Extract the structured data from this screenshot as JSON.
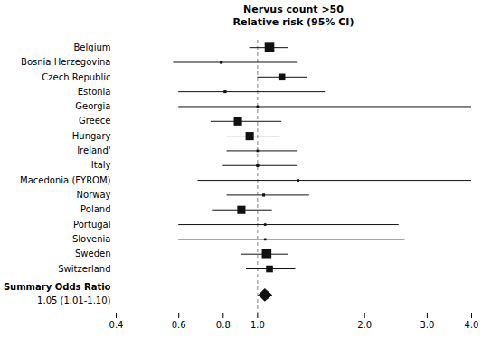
{
  "chart_data": {
    "type": "forest",
    "title": "Nervus count >50",
    "subtitle": "Relative risk (95% CI)",
    "log": "x",
    "grid": false,
    "color": "#111111",
    "categories": [
      "Belgium",
      "Bosnia Herzegovina",
      "Czech Republic",
      "Estonia",
      "Georgia",
      "Greece",
      "Hungary",
      "Ireland'",
      "Italy",
      "Macedonia (FYROM)",
      "Norway",
      "Poland",
      "Portugal",
      "Slovenia",
      "Sweden",
      "Switzerland"
    ],
    "values": [
      1.08,
      0.79,
      1.17,
      0.81,
      1.0,
      0.88,
      0.95,
      1.0,
      1.0,
      1.3,
      1.04,
      0.9,
      1.05,
      1.05,
      1.06,
      1.08
    ],
    "ci_lo": [
      0.95,
      0.58,
      1.0,
      0.6,
      0.6,
      0.74,
      0.82,
      0.82,
      0.8,
      0.68,
      0.82,
      0.75,
      0.6,
      0.6,
      0.9,
      0.93
    ],
    "ci_hi": [
      1.22,
      1.3,
      1.38,
      1.55,
      4.0,
      1.17,
      1.15,
      1.3,
      1.3,
      4.0,
      1.4,
      1.1,
      2.5,
      2.6,
      1.22,
      1.28
    ],
    "weights": [
      7,
      2,
      5,
      2,
      1,
      6,
      6,
      0,
      2,
      1,
      2,
      6,
      1,
      1,
      7,
      5
    ],
    "reference_x": 1.0,
    "summary": {
      "label": "Summary Odds Ratio",
      "value_label": "1.05 (1.01-1.10)",
      "value": 1.05,
      "ci_lo": 1.01,
      "ci_hi": 1.1
    },
    "xlim": [
      0.4,
      4.0
    ],
    "xticks": [
      0.4,
      0.6,
      0.8,
      {
        "value": 1.0,
        "label": "1.0"
      },
      {
        "value": 2.0,
        "label": "2.0"
      },
      {
        "value": 3.0,
        "label": "3.0"
      },
      {
        "value": 4.0,
        "label": "4.0"
      }
    ]
  }
}
